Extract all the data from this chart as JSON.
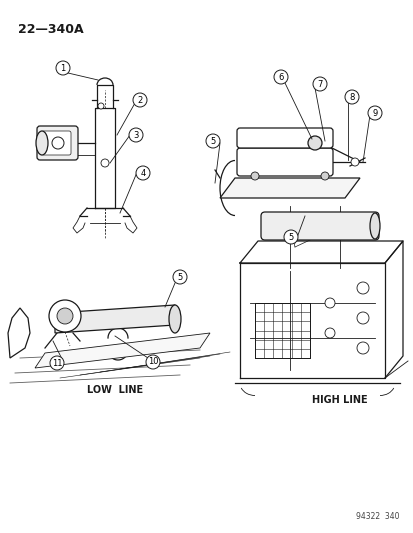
{
  "title": "22—340A",
  "background_color": "#ffffff",
  "line_color": "#1a1a1a",
  "footnote": "94322  340",
  "low_line_label": "LOW  LINE",
  "high_line_label": "HIGH LINE",
  "fig_width": 4.14,
  "fig_height": 5.33,
  "dpi": 100
}
